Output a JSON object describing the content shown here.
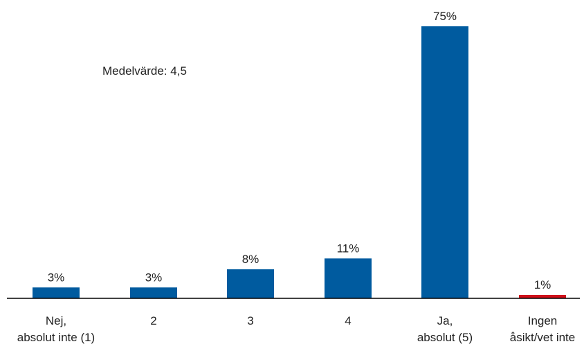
{
  "chart_data": {
    "type": "bar",
    "categories": [
      [
        "Nej,",
        "absolut inte (1)"
      ],
      [
        "2"
      ],
      [
        "3"
      ],
      [
        "4"
      ],
      [
        "Ja,",
        "absolut (5)"
      ],
      [
        "Ingen",
        "åsikt/vet inte"
      ]
    ],
    "values": [
      3,
      3,
      8,
      11,
      75,
      1
    ],
    "value_labels": [
      "3%",
      "3%",
      "8%",
      "11%",
      "75%",
      "1%"
    ],
    "bar_colors": [
      "#005b9f",
      "#005b9f",
      "#005b9f",
      "#005b9f",
      "#005b9f",
      "#d0111b"
    ],
    "annotation": "Medelvärde: 4,5",
    "ylim": [
      0,
      100
    ],
    "grid": false
  }
}
